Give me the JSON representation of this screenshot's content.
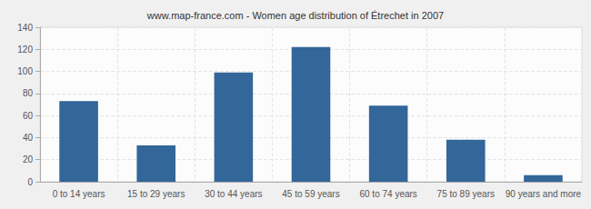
{
  "chart_data": {
    "type": "bar",
    "title": "www.map-france.com - Women age distribution of Étrechet in 2007",
    "categories": [
      "0 to 14 years",
      "15 to 29 years",
      "30 to 44 years",
      "45 to 59 years",
      "60 to 74 years",
      "75 to 89 years",
      "90 years and more"
    ],
    "values": [
      73,
      33,
      99,
      122,
      69,
      38,
      6
    ],
    "color": "#336699",
    "ylim": [
      0,
      140
    ],
    "yticks": [
      0,
      20,
      40,
      60,
      80,
      100,
      120,
      140
    ],
    "grid": true
  }
}
